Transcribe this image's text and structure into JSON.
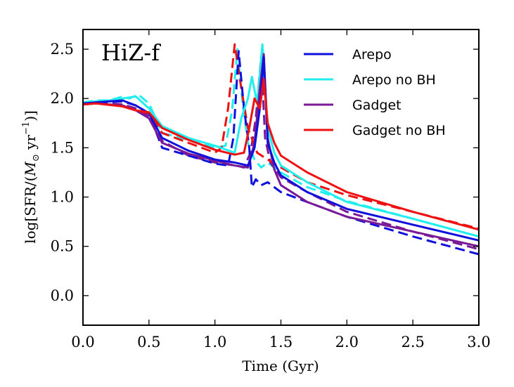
{
  "chart_data": {
    "type": "line",
    "title": "HiZ-f",
    "xlabel": "Time (Gyr)",
    "ylabel_parts": {
      "prefix": "log[SFR/(",
      "msym": "M",
      "sun": "⊙",
      "unit": " yr",
      "exp": "−1",
      "suffix": ")]"
    },
    "xlim": [
      0.0,
      3.0
    ],
    "ylim": [
      -0.3,
      2.7
    ],
    "xticks": [
      0.0,
      0.5,
      1.0,
      1.5,
      2.0,
      2.5,
      3.0
    ],
    "xtick_labels": [
      "0.0",
      "0.5",
      "1.0",
      "1.5",
      "2.0",
      "2.5",
      "3.0"
    ],
    "yticks": [
      0.0,
      0.5,
      1.0,
      1.5,
      2.0,
      2.5
    ],
    "ytick_labels": [
      "0.0",
      "0.5",
      "1.0",
      "1.5",
      "2.0",
      "2.5"
    ],
    "legend_position": "top-right",
    "legend": [
      {
        "label": "Arepo",
        "color": "#1010dd"
      },
      {
        "label": "Arepo no BH",
        "color": "#22eeee"
      },
      {
        "label": "Gadget",
        "color": "#7a1a96"
      },
      {
        "label": "Gadget no BH",
        "color": "#ee1111"
      }
    ],
    "series": [
      {
        "name": "Arepo no BH (dashed)",
        "color": "#22eeee",
        "dash": true,
        "x": [
          0.0,
          0.1,
          0.2,
          0.3,
          0.35,
          0.42,
          0.5,
          0.6,
          0.8,
          1.0,
          1.08,
          1.13,
          1.17,
          1.21,
          1.25,
          1.3,
          1.35,
          1.4,
          1.5,
          1.7,
          2.0,
          2.5,
          3.0
        ],
        "y": [
          1.96,
          1.98,
          1.98,
          2.02,
          2.0,
          2.04,
          1.95,
          1.65,
          1.58,
          1.5,
          1.52,
          1.88,
          2.5,
          1.95,
          1.55,
          1.38,
          1.3,
          1.35,
          1.25,
          1.1,
          0.96,
          0.78,
          0.6
        ]
      },
      {
        "name": "Gadget (dashed)",
        "color": "#7a1a96",
        "dash": true,
        "x": [
          0.0,
          0.1,
          0.3,
          0.4,
          0.5,
          0.6,
          0.8,
          1.0,
          1.1,
          1.16,
          1.22,
          1.27,
          1.31,
          1.35,
          1.38,
          1.42,
          1.5,
          1.7,
          2.0,
          2.5,
          3.0
        ],
        "y": [
          1.95,
          1.96,
          1.94,
          1.9,
          1.82,
          1.57,
          1.42,
          1.35,
          1.33,
          1.32,
          1.3,
          1.45,
          1.8,
          2.42,
          1.6,
          1.35,
          1.2,
          1.05,
          0.85,
          0.65,
          0.47
        ]
      },
      {
        "name": "Gadget no BH (dashed)",
        "color": "#ee1111",
        "dash": true,
        "x": [
          0.0,
          0.1,
          0.3,
          0.4,
          0.5,
          0.6,
          0.8,
          1.0,
          1.05,
          1.1,
          1.15,
          1.2,
          1.25,
          1.32,
          1.4,
          1.5,
          1.7,
          2.0,
          2.5,
          3.0
        ],
        "y": [
          1.95,
          1.96,
          1.92,
          1.88,
          1.85,
          1.65,
          1.55,
          1.45,
          1.5,
          1.9,
          2.55,
          2.1,
          1.7,
          1.45,
          1.38,
          1.3,
          1.15,
          1.02,
          0.85,
          0.68
        ]
      },
      {
        "name": "Arepo (dashed)",
        "color": "#1010dd",
        "dash": true,
        "x": [
          0.0,
          0.1,
          0.3,
          0.4,
          0.5,
          0.6,
          0.8,
          1.0,
          1.1,
          1.14,
          1.18,
          1.22,
          1.26,
          1.28,
          1.31,
          1.35,
          1.4,
          1.5,
          1.7,
          2.0,
          2.5,
          3.0
        ],
        "y": [
          1.95,
          1.96,
          1.97,
          1.93,
          1.85,
          1.5,
          1.42,
          1.34,
          1.32,
          1.6,
          2.48,
          1.9,
          1.5,
          1.1,
          1.18,
          1.12,
          1.15,
          1.05,
          0.95,
          0.8,
          0.6,
          0.42
        ]
      },
      {
        "name": "Arepo no BH",
        "color": "#22eeee",
        "dash": false,
        "x": [
          0.0,
          0.1,
          0.2,
          0.3,
          0.4,
          0.5,
          0.6,
          0.8,
          1.0,
          1.15,
          1.2,
          1.25,
          1.28,
          1.32,
          1.36,
          1.4,
          1.45,
          1.5,
          1.7,
          2.0,
          2.5,
          3.0
        ],
        "y": [
          1.96,
          1.97,
          1.98,
          2.0,
          2.02,
          1.9,
          1.72,
          1.6,
          1.52,
          1.45,
          1.8,
          2.0,
          2.22,
          1.95,
          2.55,
          1.7,
          1.45,
          1.32,
          1.15,
          0.95,
          0.78,
          0.6
        ]
      },
      {
        "name": "Gadget",
        "color": "#7a1a96",
        "dash": false,
        "x": [
          0.0,
          0.1,
          0.3,
          0.4,
          0.5,
          0.6,
          0.8,
          1.0,
          1.15,
          1.25,
          1.3,
          1.34,
          1.37,
          1.4,
          1.45,
          1.5,
          1.7,
          2.0,
          2.5,
          3.0
        ],
        "y": [
          1.94,
          1.95,
          1.93,
          1.88,
          1.8,
          1.55,
          1.44,
          1.37,
          1.32,
          1.3,
          1.55,
          2.1,
          2.45,
          1.6,
          1.28,
          1.12,
          0.95,
          0.8,
          0.65,
          0.5
        ]
      },
      {
        "name": "Arepo",
        "color": "#1010dd",
        "dash": false,
        "x": [
          0.0,
          0.1,
          0.3,
          0.4,
          0.5,
          0.6,
          0.8,
          1.0,
          1.15,
          1.25,
          1.3,
          1.34,
          1.37,
          1.4,
          1.45,
          1.5,
          1.7,
          2.0,
          2.5,
          3.0
        ],
        "y": [
          1.95,
          1.96,
          1.98,
          1.93,
          1.85,
          1.6,
          1.47,
          1.38,
          1.35,
          1.32,
          1.5,
          1.9,
          2.42,
          1.55,
          1.35,
          1.22,
          1.05,
          0.88,
          0.72,
          0.56
        ]
      },
      {
        "name": "Gadget no BH",
        "color": "#ee1111",
        "dash": false,
        "x": [
          0.0,
          0.1,
          0.3,
          0.4,
          0.5,
          0.6,
          0.8,
          1.0,
          1.15,
          1.22,
          1.26,
          1.3,
          1.34,
          1.37,
          1.4,
          1.45,
          1.5,
          1.7,
          2.0,
          2.5,
          3.0
        ],
        "y": [
          1.94,
          1.95,
          1.92,
          1.88,
          1.86,
          1.7,
          1.58,
          1.48,
          1.43,
          1.45,
          1.7,
          2.0,
          1.9,
          2.2,
          1.75,
          1.55,
          1.42,
          1.25,
          1.05,
          0.85,
          0.67
        ]
      }
    ]
  }
}
